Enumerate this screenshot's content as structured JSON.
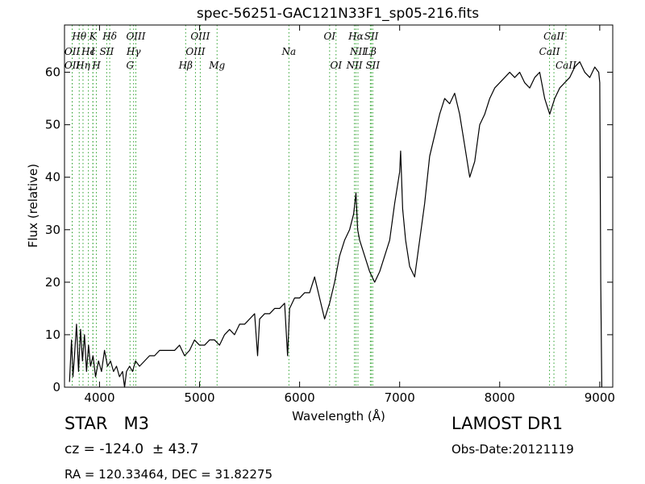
{
  "chart_data": {
    "type": "line",
    "title": "spec-56251-GAC121N33F1_sp05-216.fits",
    "xlabel": "Wavelength (Å)",
    "ylabel": "Flux (relative)",
    "xlim": [
      3650,
      9130
    ],
    "ylim": [
      0,
      69
    ],
    "xticks": [
      4000,
      5000,
      6000,
      7000,
      8000,
      9000
    ],
    "yticks": [
      0,
      10,
      20,
      30,
      40,
      50,
      60
    ],
    "grid": false,
    "line_color": "#000000",
    "marker_color": "#2ca02c",
    "spectrum": [
      [
        3700,
        1
      ],
      [
        3720,
        9
      ],
      [
        3735,
        2
      ],
      [
        3750,
        6
      ],
      [
        3770,
        12
      ],
      [
        3790,
        3
      ],
      [
        3810,
        11
      ],
      [
        3830,
        5
      ],
      [
        3850,
        10
      ],
      [
        3870,
        3
      ],
      [
        3890,
        8
      ],
      [
        3910,
        4
      ],
      [
        3935,
        6
      ],
      [
        3960,
        2
      ],
      [
        3990,
        5
      ],
      [
        4020,
        3
      ],
      [
        4050,
        7
      ],
      [
        4080,
        4
      ],
      [
        4110,
        5
      ],
      [
        4140,
        3
      ],
      [
        4170,
        4
      ],
      [
        4200,
        2
      ],
      [
        4230,
        3
      ],
      [
        4250,
        0
      ],
      [
        4270,
        3
      ],
      [
        4300,
        4
      ],
      [
        4330,
        3
      ],
      [
        4360,
        5
      ],
      [
        4400,
        4
      ],
      [
        4450,
        5
      ],
      [
        4500,
        6
      ],
      [
        4550,
        6
      ],
      [
        4600,
        7
      ],
      [
        4650,
        7
      ],
      [
        4700,
        7
      ],
      [
        4750,
        7
      ],
      [
        4800,
        8
      ],
      [
        4850,
        6
      ],
      [
        4900,
        7
      ],
      [
        4950,
        9
      ],
      [
        5000,
        8
      ],
      [
        5050,
        8
      ],
      [
        5100,
        9
      ],
      [
        5150,
        9
      ],
      [
        5200,
        8
      ],
      [
        5250,
        10
      ],
      [
        5300,
        11
      ],
      [
        5350,
        10
      ],
      [
        5400,
        12
      ],
      [
        5450,
        12
      ],
      [
        5500,
        13
      ],
      [
        5550,
        14
      ],
      [
        5580,
        6
      ],
      [
        5600,
        13
      ],
      [
        5650,
        14
      ],
      [
        5700,
        14
      ],
      [
        5750,
        15
      ],
      [
        5800,
        15
      ],
      [
        5850,
        16
      ],
      [
        5880,
        6
      ],
      [
        5900,
        15
      ],
      [
        5950,
        17
      ],
      [
        6000,
        17
      ],
      [
        6050,
        18
      ],
      [
        6100,
        18
      ],
      [
        6150,
        21
      ],
      [
        6200,
        17
      ],
      [
        6250,
        13
      ],
      [
        6300,
        16
      ],
      [
        6350,
        20
      ],
      [
        6400,
        25
      ],
      [
        6450,
        28
      ],
      [
        6500,
        30
      ],
      [
        6540,
        33
      ],
      [
        6563,
        37
      ],
      [
        6580,
        30
      ],
      [
        6600,
        28
      ],
      [
        6650,
        25
      ],
      [
        6700,
        22
      ],
      [
        6750,
        20
      ],
      [
        6800,
        22
      ],
      [
        6850,
        25
      ],
      [
        6900,
        28
      ],
      [
        6950,
        35
      ],
      [
        7000,
        41
      ],
      [
        7010,
        45
      ],
      [
        7030,
        34
      ],
      [
        7060,
        28
      ],
      [
        7100,
        23
      ],
      [
        7150,
        21
      ],
      [
        7200,
        28
      ],
      [
        7250,
        35
      ],
      [
        7300,
        44
      ],
      [
        7350,
        48
      ],
      [
        7400,
        52
      ],
      [
        7450,
        55
      ],
      [
        7500,
        54
      ],
      [
        7550,
        56
      ],
      [
        7600,
        52
      ],
      [
        7650,
        46
      ],
      [
        7700,
        40
      ],
      [
        7750,
        43
      ],
      [
        7800,
        50
      ],
      [
        7850,
        52
      ],
      [
        7900,
        55
      ],
      [
        7950,
        57
      ],
      [
        8000,
        58
      ],
      [
        8050,
        59
      ],
      [
        8100,
        60
      ],
      [
        8150,
        59
      ],
      [
        8200,
        60
      ],
      [
        8250,
        58
      ],
      [
        8300,
        57
      ],
      [
        8350,
        59
      ],
      [
        8400,
        60
      ],
      [
        8450,
        55
      ],
      [
        8500,
        52
      ],
      [
        8550,
        55
      ],
      [
        8600,
        57
      ],
      [
        8650,
        58
      ],
      [
        8700,
        59
      ],
      [
        8750,
        61
      ],
      [
        8800,
        62
      ],
      [
        8850,
        60
      ],
      [
        8900,
        59
      ],
      [
        8950,
        61
      ],
      [
        8990,
        60
      ],
      [
        9000,
        58
      ],
      [
        9010,
        20
      ],
      [
        9020,
        0
      ]
    ],
    "line_markers": [
      {
        "label": "Hθ",
        "x": 3797,
        "row": 1
      },
      {
        "label": "OII",
        "x": 3727,
        "row": 2
      },
      {
        "label": "OII",
        "x": 3727,
        "row": 3
      },
      {
        "label": "Hϵ",
        "x": 3889,
        "row": 2
      },
      {
        "label": "Hη",
        "x": 3835,
        "row": 3
      },
      {
        "label": "K",
        "x": 3934,
        "row": 1
      },
      {
        "label": "I",
        "x": 3934,
        "row": 2
      },
      {
        "label": "H",
        "x": 3969,
        "row": 3
      },
      {
        "label": "Hδ",
        "x": 4102,
        "row": 1
      },
      {
        "label": "SII",
        "x": 4072,
        "row": 2
      },
      {
        "label": "OIII",
        "x": 4363,
        "row": 1
      },
      {
        "label": "Hγ",
        "x": 4341,
        "row": 2
      },
      {
        "label": "G",
        "x": 4305,
        "row": 3
      },
      {
        "label": "OIII",
        "x": 5007,
        "row": 1
      },
      {
        "label": "OIII",
        "x": 4959,
        "row": 2
      },
      {
        "label": "Hβ",
        "x": 4861,
        "row": 3
      },
      {
        "label": "Mg",
        "x": 5175,
        "row": 3
      },
      {
        "label": "Na",
        "x": 5893,
        "row": 2
      },
      {
        "label": "OI",
        "x": 6300,
        "row": 1
      },
      {
        "label": "OI",
        "x": 6364,
        "row": 3
      },
      {
        "label": "Hα",
        "x": 6563,
        "row": 1
      },
      {
        "label": "SII",
        "x": 6717,
        "row": 1
      },
      {
        "label": "NII",
        "x": 6583,
        "row": 2
      },
      {
        "label": "Lβ",
        "x": 6707,
        "row": 2
      },
      {
        "label": "NII",
        "x": 6548,
        "row": 3
      },
      {
        "label": "SII",
        "x": 6731,
        "row": 3
      },
      {
        "label": "CaII",
        "x": 8542,
        "row": 1
      },
      {
        "label": "CaII",
        "x": 8498,
        "row": 2
      },
      {
        "label": "CaII",
        "x": 8662,
        "row": 3
      }
    ]
  },
  "info": {
    "class_label": "STAR   M3",
    "survey": "LAMOST DR1",
    "redshift": "cz = -124.0  ± 43.7",
    "obs_date": "Obs-Date:20121119",
    "coords": "RA = 120.33464, DEC = 31.82275"
  }
}
